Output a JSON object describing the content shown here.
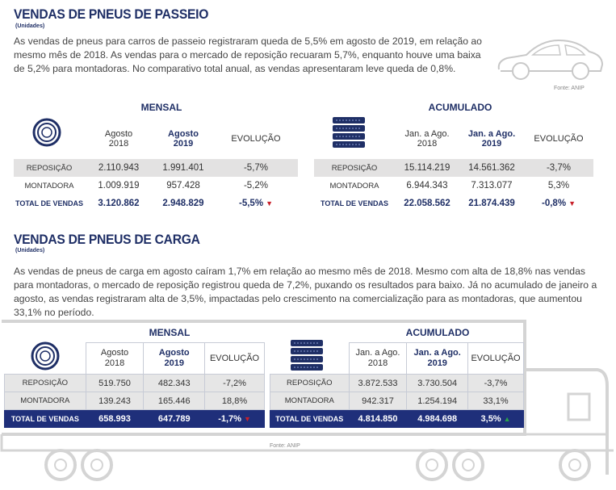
{
  "passeio": {
    "title": "VENDAS DE PNEUS DE PASSEIO",
    "unit": "(Unidades)",
    "text": "As vendas de pneus para carros de passeio registraram queda de 5,5% em agosto de 2019, em relação ao mesmo mês de 2018. As vendas para o mercado de reposição recuaram 5,7%, enquanto houve uma baixa de 5,2% para montadoras. No comparativo total anual, as vendas apresentaram leve queda de 0,8%.",
    "source": "Fonte: ANIP",
    "mensal": {
      "caption": "MENSAL",
      "col1": "Agosto\n2018",
      "col2": "Agosto\n2019",
      "col3": "EVOLUÇÃO",
      "rows": [
        {
          "label": "REPOSIÇÃO",
          "a": "2.110.943",
          "b": "1.991.401",
          "c": "-5,7%"
        },
        {
          "label": "MONTADORA",
          "a": "1.009.919",
          "b": "957.428",
          "c": "-5,2%"
        }
      ],
      "total": {
        "label": "TOTAL DE VENDAS",
        "a": "3.120.862",
        "b": "2.948.829",
        "c": "-5,5%"
      }
    },
    "acumulado": {
      "caption": "ACUMULADO",
      "col1": "Jan. a Ago.\n2018",
      "col2": "Jan. a Ago.\n2019",
      "col3": "EVOLUÇÃO",
      "rows": [
        {
          "label": "REPOSIÇÃO",
          "a": "15.114.219",
          "b": "14.561.362",
          "c": "-3,7%"
        },
        {
          "label": "MONTADORA",
          "a": "6.944.343",
          "b": "7.313.077",
          "c": "5,3%"
        }
      ],
      "total": {
        "label": "TOTAL DE VENDAS",
        "a": "22.058.562",
        "b": "21.874.439",
        "c": "-0,8%"
      }
    }
  },
  "carga": {
    "title": "VENDAS DE PNEUS DE CARGA",
    "unit": "(Unidades)",
    "text": "As vendas de pneus de carga em agosto caíram 1,7% em relação ao mesmo mês de 2018. Mesmo com alta de 18,8% nas vendas para montadoras, o mercado de reposição registrou queda de 7,2%, puxando os resultados para baixo. Já no acumulado de janeiro a agosto, as vendas registraram alta de 3,5%, impactadas pelo crescimento na comercialização para as montadoras, que aumentou 33,1% no período.",
    "source": "Fonte: ANIP",
    "mensal": {
      "caption": "MENSAL",
      "col1": "Agosto\n2018",
      "col2": "Agosto\n2019",
      "col3": "EVOLUÇÃO",
      "rows": [
        {
          "label": "REPOSIÇÃO",
          "a": "519.750",
          "b": "482.343",
          "c": "-7,2%"
        },
        {
          "label": "MONTADORA",
          "a": "139.243",
          "b": "165.446",
          "c": "18,8%"
        }
      ],
      "total": {
        "label": "TOTAL DE VENDAS",
        "a": "658.993",
        "b": "647.789",
        "c": "-1,7%"
      }
    },
    "acumulado": {
      "caption": "ACUMULADO",
      "col1": "Jan. a Ago.\n2018",
      "col2": "Jan. a Ago.\n2019",
      "col3": "EVOLUÇÃO",
      "rows": [
        {
          "label": "REPOSIÇÃO",
          "a": "3.872.533",
          "b": "3.730.504",
          "c": "-3,7%"
        },
        {
          "label": "MONTADORA",
          "a": "942.317",
          "b": "1.254.194",
          "c": "33,1%"
        }
      ],
      "total": {
        "label": "TOTAL DE VENDAS",
        "a": "4.814.850",
        "b": "4.984.698",
        "c": "3,5%"
      }
    }
  },
  "icons": [
    "tire-icon",
    "tire-stack-icon",
    "car-outline-icon",
    "truck-outline-icon",
    "down-triangle-icon",
    "up-triangle-icon"
  ],
  "colors": {
    "navy": "#1f2f66",
    "red": "#c8202a",
    "green": "#2aa24b",
    "gray": "#e3e2e2"
  }
}
